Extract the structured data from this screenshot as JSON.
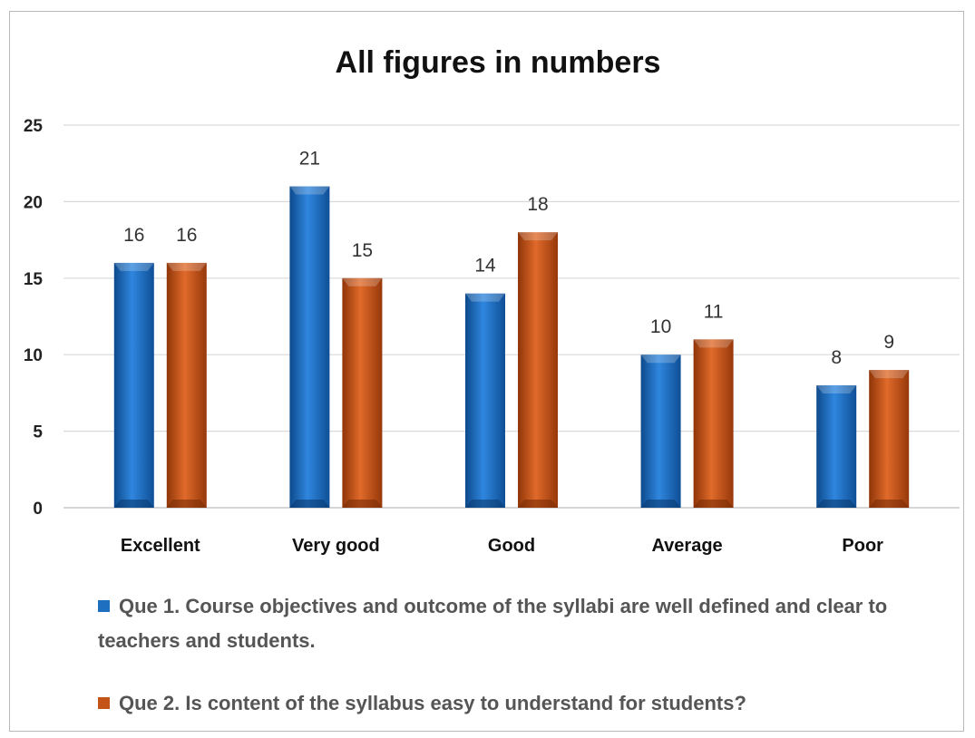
{
  "chart_data": {
    "type": "bar",
    "title": "All figures in numbers",
    "categories": [
      "Excellent",
      "Very good",
      "Good",
      "Average",
      "Poor"
    ],
    "series": [
      {
        "name": "Que 1. Course objectives and outcome of the syllabi are well defined and clear to teachers and students.",
        "values": [
          16,
          21,
          14,
          10,
          8
        ],
        "color": "#1f6fc0"
      },
      {
        "name": "Que 2. Is content of the syllabus easy to understand for students?",
        "values": [
          16,
          15,
          18,
          11,
          9
        ],
        "color": "#c45317"
      }
    ],
    "ylim": [
      0,
      25
    ],
    "yticks": [
      0,
      5,
      10,
      15,
      20,
      25
    ],
    "grid": true,
    "legend_position": "bottom",
    "data_labels": true
  }
}
